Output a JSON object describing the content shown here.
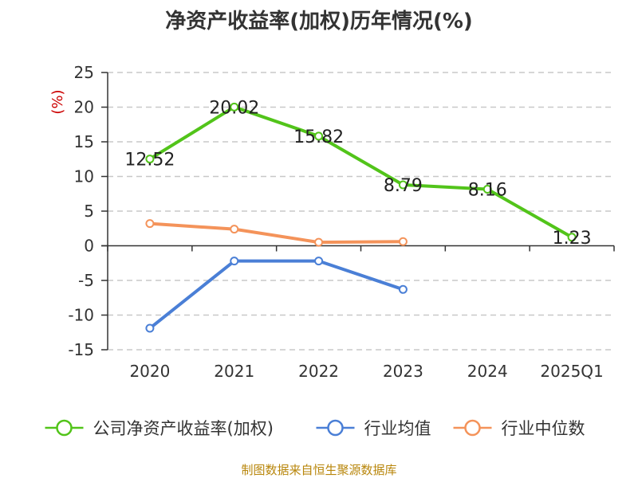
{
  "chart_data": {
    "type": "line",
    "title": "净资产收益率(加权)历年情况(%)",
    "ylabel": "(%)",
    "xlabel": "",
    "categories": [
      "2020",
      "2021",
      "2022",
      "2023",
      "2024",
      "2025Q1"
    ],
    "ylim": [
      -15,
      25
    ],
    "yticks": [
      25,
      20,
      15,
      10,
      5,
      0,
      -5,
      -10,
      -15
    ],
    "grid": true,
    "legend_position": "bottom",
    "series": [
      {
        "name": "公司净资产收益率(加权)",
        "color": "#52c41a",
        "values": [
          12.52,
          20.02,
          15.82,
          8.79,
          8.16,
          1.23
        ],
        "labels": [
          "12.52",
          "20.02",
          "15.82",
          "8.79",
          "8.16",
          "1.23"
        ]
      },
      {
        "name": "行业均值",
        "color": "#4a7fd6",
        "values": [
          -11.9,
          -2.2,
          -2.2,
          -6.3,
          null,
          null
        ]
      },
      {
        "name": "行业中位数",
        "color": "#f4935a",
        "values": [
          3.2,
          2.4,
          0.5,
          0.6,
          null,
          null
        ]
      }
    ]
  },
  "source": "制图数据来自恒生聚源数据库"
}
